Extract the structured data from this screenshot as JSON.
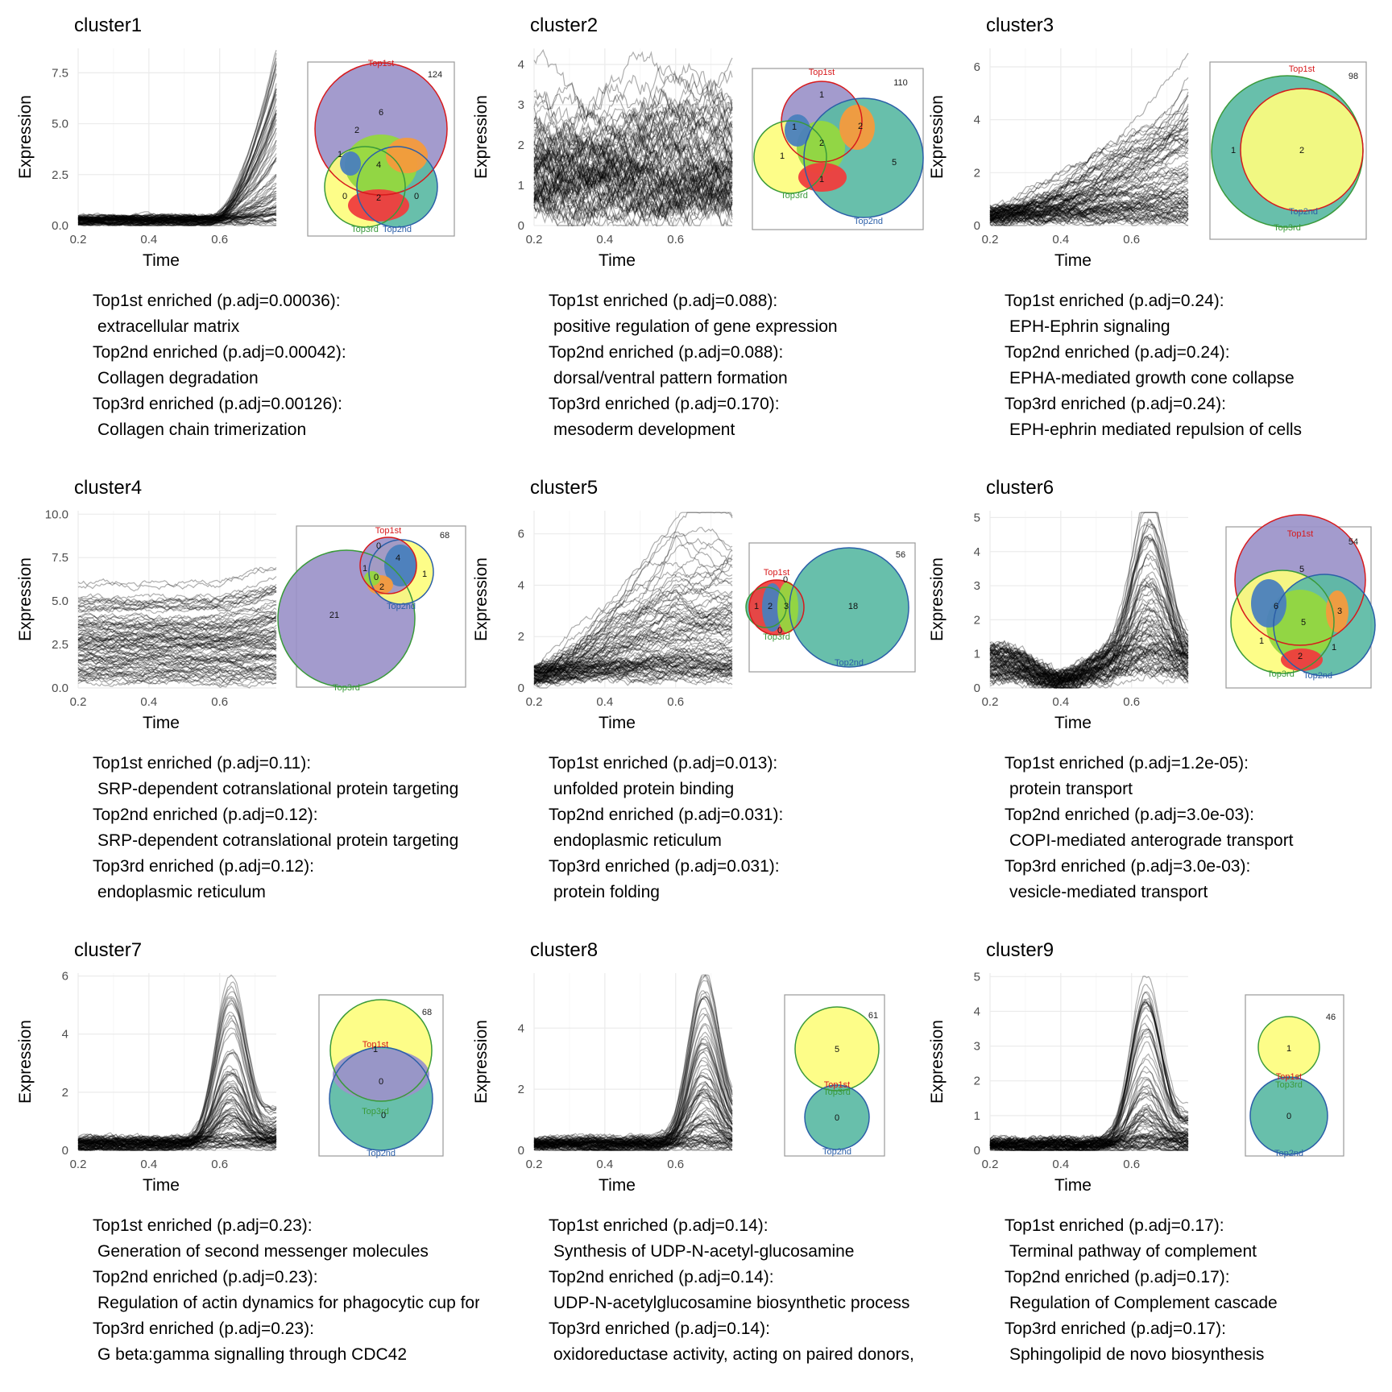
{
  "chart_data": [
    {
      "type": "line",
      "title": "cluster1",
      "xlabel": "Time",
      "ylabel": "Expression",
      "xlim": [
        0.2,
        0.76
      ],
      "ylim": [
        0,
        8.7
      ],
      "xticks": [
        "0.2",
        "0.4",
        "0.6"
      ],
      "yticks": [
        "0.0",
        "2.5",
        "5.0",
        "7.5"
      ],
      "ytick_values": [
        0,
        2.5,
        5,
        7.5
      ],
      "profile": {
        "rise_start": 0.58,
        "peak_x": 0.76,
        "max": 8.5,
        "baseline": 0.6,
        "n_lines": 90
      },
      "venn": {
        "total": "124",
        "labels": {
          "top1": "Top1st",
          "top2": "Top2nd",
          "top3": "Top3rd"
        },
        "regions": [
          {
            "name": "top1_only",
            "value": "6"
          },
          {
            "name": "top1_top3",
            "value": "2"
          },
          {
            "name": "top3_only_a",
            "value": "1"
          },
          {
            "name": "all",
            "value": "4"
          },
          {
            "name": "top3_only",
            "value": "0"
          },
          {
            "name": "top2_top3",
            "value": "2"
          },
          {
            "name": "top2_only",
            "value": "0"
          }
        ]
      },
      "enrichment": [
        {
          "label": "Top1st enriched (p.adj=0.00036):",
          "term": "extracellular matrix"
        },
        {
          "label": "Top2nd enriched (p.adj=0.00042):",
          "term": "Collagen degradation"
        },
        {
          "label": "Top3rd enriched (p.adj=0.00126):",
          "term": "Collagen chain trimerization"
        }
      ]
    },
    {
      "type": "line",
      "title": "cluster2",
      "xlabel": "Time",
      "ylabel": "Expression",
      "xlim": [
        0.2,
        0.76
      ],
      "ylim": [
        0,
        4.4
      ],
      "xticks": [
        "0.2",
        "0.4",
        "0.6"
      ],
      "yticks": [
        "0",
        "1",
        "2",
        "3",
        "4"
      ],
      "ytick_values": [
        0,
        1,
        2,
        3,
        4
      ],
      "profile": {
        "shape": "noisy",
        "max": 4.2,
        "baseline": 1.2,
        "n_lines": 90
      },
      "venn": {
        "total": "110",
        "labels": {
          "top1": "Top1st",
          "top2": "Top2nd",
          "top3": "Top3rd"
        },
        "regions": [
          {
            "name": "top1_only",
            "value": "1"
          },
          {
            "name": "top1_top3",
            "value": "1"
          },
          {
            "name": "all",
            "value": "2"
          },
          {
            "name": "top1_top2",
            "value": "2"
          },
          {
            "name": "top3_only",
            "value": "1"
          },
          {
            "name": "top2_top3",
            "value": "1"
          },
          {
            "name": "top2_only",
            "value": "5"
          }
        ]
      },
      "enrichment": [
        {
          "label": "Top1st enriched (p.adj=0.088):",
          "term": "positive regulation of gene expression"
        },
        {
          "label": "Top2nd enriched (p.adj=0.088):",
          "term": "dorsal/ventral pattern formation"
        },
        {
          "label": "Top3rd enriched (p.adj=0.170):",
          "term": "mesoderm development"
        }
      ]
    },
    {
      "type": "line",
      "title": "cluster3",
      "xlabel": "Time",
      "ylabel": "Expression",
      "xlim": [
        0.2,
        0.76
      ],
      "ylim": [
        0,
        6.7
      ],
      "xticks": [
        "0.2",
        "0.4",
        "0.6"
      ],
      "yticks": [
        "0",
        "2",
        "4",
        "6"
      ],
      "ytick_values": [
        0,
        2,
        4,
        6
      ],
      "profile": {
        "shape": "rising",
        "max": 6.5,
        "baseline": 0.8,
        "n_lines": 90
      },
      "venn": {
        "total": "98",
        "labels": {
          "top1": "Top1st",
          "top2": "Top2nd",
          "top3": "Top3rd"
        },
        "regions": [
          {
            "name": "top3_only",
            "value": "1"
          },
          {
            "name": "all",
            "value": "2"
          }
        ]
      },
      "enrichment": [
        {
          "label": "Top1st enriched (p.adj=0.24):",
          "term": "EPH-Ephrin signaling"
        },
        {
          "label": "Top2nd enriched (p.adj=0.24):",
          "term": "EPHA-mediated growth cone collapse"
        },
        {
          "label": "Top3rd enriched (p.adj=0.24):",
          "term": "EPH-ephrin mediated repulsion of cells"
        }
      ]
    },
    {
      "type": "line",
      "title": "cluster4",
      "xlabel": "Time",
      "ylabel": "Expression",
      "xlim": [
        0.2,
        0.76
      ],
      "ylim": [
        0,
        10.2
      ],
      "xticks": [
        "0.2",
        "0.4",
        "0.6"
      ],
      "yticks": [
        "0.0",
        "2.5",
        "5.0",
        "7.5",
        "10.0"
      ],
      "ytick_values": [
        0,
        2.5,
        5,
        7.5,
        10
      ],
      "profile": {
        "shape": "flat",
        "max": 9.8,
        "baseline": 1.8,
        "n_lines": 90
      },
      "venn": {
        "total": "68",
        "labels": {
          "top1": "Top1st",
          "top2": "Top2nd",
          "top3": "Top3rd"
        },
        "regions": [
          {
            "name": "top1_only",
            "value": "0"
          },
          {
            "name": "top1_top3",
            "value": "1"
          },
          {
            "name": "top1_top2",
            "value": "4"
          },
          {
            "name": "all",
            "value": "0"
          },
          {
            "name": "top2_only",
            "value": "1"
          },
          {
            "name": "top2_top3",
            "value": "2"
          },
          {
            "name": "top3_only",
            "value": "21"
          }
        ]
      },
      "enrichment": [
        {
          "label": "Top1st enriched (p.adj=0.11):",
          "term": "SRP-dependent cotranslational protein targeting"
        },
        {
          "label": "Top2nd enriched (p.adj=0.12):",
          "term": "SRP-dependent cotranslational protein targeting"
        },
        {
          "label": "Top3rd enriched (p.adj=0.12):",
          "term": "endoplasmic reticulum"
        }
      ]
    },
    {
      "type": "line",
      "title": "cluster5",
      "xlabel": "Time",
      "ylabel": "Expression",
      "xlim": [
        0.2,
        0.76
      ],
      "ylim": [
        0,
        6.9
      ],
      "xticks": [
        "0.2",
        "0.4",
        "0.6"
      ],
      "yticks": [
        "0",
        "2",
        "4",
        "6"
      ],
      "ytick_values": [
        0,
        2,
        4,
        6
      ],
      "profile": {
        "shape": "rising_mid",
        "max": 6.7,
        "baseline": 1.0,
        "n_lines": 90
      },
      "venn": {
        "total": "56",
        "labels": {
          "top1": "Top1st",
          "top2": "Top2nd",
          "top3": "Top3rd"
        },
        "regions": [
          {
            "name": "top3_only",
            "value": "1"
          },
          {
            "name": "top1_top3",
            "value": "2"
          },
          {
            "name": "top1_top2",
            "value": "0"
          },
          {
            "name": "all",
            "value": "3"
          },
          {
            "name": "top2_only",
            "value": "18"
          },
          {
            "name": "top2_top3",
            "value": "0"
          }
        ]
      },
      "enrichment": [
        {
          "label": "Top1st enriched (p.adj=0.013):",
          "term": "unfolded protein binding"
        },
        {
          "label": "Top2nd enriched (p.adj=0.031):",
          "term": "endoplasmic reticulum"
        },
        {
          "label": "Top3rd enriched (p.adj=0.031):",
          "term": "protein folding"
        }
      ]
    },
    {
      "type": "line",
      "title": "cluster6",
      "xlabel": "Time",
      "ylabel": "Expression",
      "xlim": [
        0.2,
        0.76
      ],
      "ylim": [
        0,
        5.2
      ],
      "xticks": [
        "0.2",
        "0.4",
        "0.6"
      ],
      "yticks": [
        "0",
        "1",
        "2",
        "3",
        "4",
        "5"
      ],
      "ytick_values": [
        0,
        1,
        2,
        3,
        4,
        5
      ],
      "profile": {
        "shape": "dip_peak",
        "peak_x": 0.65,
        "max": 4.8,
        "baseline": 0.9,
        "n_lines": 90
      },
      "venn": {
        "total": "54",
        "labels": {
          "top1": "Top1st",
          "top2": "Top2nd",
          "top3": "Top3rd"
        },
        "regions": [
          {
            "name": "top1_only",
            "value": "5"
          },
          {
            "name": "top1_top3",
            "value": "6"
          },
          {
            "name": "top1_top2",
            "value": "3"
          },
          {
            "name": "all",
            "value": "5"
          },
          {
            "name": "top3_only",
            "value": "1"
          },
          {
            "name": "top2_top3",
            "value": "2"
          },
          {
            "name": "top2_only",
            "value": "1"
          }
        ]
      },
      "enrichment": [
        {
          "label": "Top1st enriched (p.adj=1.2e-05):",
          "term": "protein transport"
        },
        {
          "label": "Top2nd enriched (p.adj=3.0e-03):",
          "term": "COPI-mediated anterograde transport"
        },
        {
          "label": "Top3rd enriched (p.adj=3.0e-03):",
          "term": "vesicle-mediated transport"
        }
      ]
    },
    {
      "type": "line",
      "title": "cluster7",
      "xlabel": "Time",
      "ylabel": "Expression",
      "xlim": [
        0.2,
        0.76
      ],
      "ylim": [
        0,
        6.1
      ],
      "xticks": [
        "0.2",
        "0.4",
        "0.6"
      ],
      "yticks": [
        "0",
        "2",
        "4",
        "6"
      ],
      "ytick_values": [
        0,
        2,
        4,
        6
      ],
      "profile": {
        "shape": "peak",
        "peak_x": 0.63,
        "max": 5.8,
        "baseline": 0.4,
        "n_lines": 90
      },
      "venn": {
        "total": "68",
        "labels": {
          "top1": "Top1st",
          "top2": "Top2nd",
          "top3": "Top3rd"
        },
        "regions": [
          {
            "name": "top1_top3",
            "value": "1"
          },
          {
            "name": "all",
            "value": "0"
          },
          {
            "name": "top2_top3",
            "value": "0"
          }
        ]
      },
      "enrichment": [
        {
          "label": "Top1st enriched (p.adj=0.23):",
          "term": "Generation of second messenger molecules"
        },
        {
          "label": "Top2nd enriched (p.adj=0.23):",
          "term": "Regulation of actin dynamics for phagocytic cup formation"
        },
        {
          "label": "Top3rd enriched (p.adj=0.23):",
          "term": "G beta:gamma signalling through CDC42"
        }
      ]
    },
    {
      "type": "line",
      "title": "cluster8",
      "xlabel": "Time",
      "ylabel": "Expression",
      "xlim": [
        0.2,
        0.76
      ],
      "ylim": [
        0,
        5.8
      ],
      "xticks": [
        "0.2",
        "0.4",
        "0.6"
      ],
      "yticks": [
        "0",
        "2",
        "4"
      ],
      "ytick_values": [
        0,
        2,
        4
      ],
      "profile": {
        "shape": "peak",
        "peak_x": 0.68,
        "max": 5.5,
        "baseline": 0.4,
        "n_lines": 90
      },
      "venn": {
        "total": "61",
        "labels": {
          "top1": "Top1st",
          "top2": "Top2nd",
          "top3": "Top3rd"
        },
        "regions": [
          {
            "name": "top1_top3",
            "value": "5"
          },
          {
            "name": "top2_only",
            "value": "0"
          }
        ]
      },
      "enrichment": [
        {
          "label": "Top1st enriched (p.adj=0.14):",
          "term": "Synthesis of UDP-N-acetyl-glucosamine"
        },
        {
          "label": "Top2nd enriched (p.adj=0.14):",
          "term": "UDP-N-acetylglucosamine biosynthetic process"
        },
        {
          "label": "Top3rd enriched (p.adj=0.14):",
          "term": "oxidoreductase activity, acting on paired donors,"
        }
      ]
    },
    {
      "type": "line",
      "title": "cluster9",
      "xlabel": "Time",
      "ylabel": "Expression",
      "xlim": [
        0.2,
        0.76
      ],
      "ylim": [
        0,
        5.1
      ],
      "xticks": [
        "0.2",
        "0.4",
        "0.6"
      ],
      "yticks": [
        "0",
        "1",
        "2",
        "3",
        "4",
        "5"
      ],
      "ytick_values": [
        0,
        1,
        2,
        3,
        4,
        5
      ],
      "profile": {
        "shape": "peak",
        "peak_x": 0.64,
        "max": 4.9,
        "baseline": 0.3,
        "n_lines": 90
      },
      "venn": {
        "total": "46",
        "labels": {
          "top1": "Top1st",
          "top2": "Top2nd",
          "top3": "Top3rd"
        },
        "regions": [
          {
            "name": "top1_top3",
            "value": "1"
          },
          {
            "name": "top2_only",
            "value": "0"
          }
        ]
      },
      "enrichment": [
        {
          "label": "Top1st enriched (p.adj=0.17):",
          "term": "Terminal pathway of complement"
        },
        {
          "label": "Top2nd enriched (p.adj=0.17):",
          "term": "Regulation of Complement cascade"
        },
        {
          "label": "Top3rd enriched (p.adj=0.17):",
          "term": "Sphingolipid de novo biosynthesis"
        }
      ]
    }
  ],
  "colors": {
    "top1_border": "#d7191c",
    "top2_border": "#2b5fa8",
    "top3_border": "#3a9a3a",
    "purple": "#9b93c9",
    "yellow": "#fdfd7e",
    "teal": "#5bbaa4",
    "red": "#f03d3d",
    "orange": "#f59a3c",
    "green": "#95d73f",
    "blue": "#4a7fbd"
  }
}
